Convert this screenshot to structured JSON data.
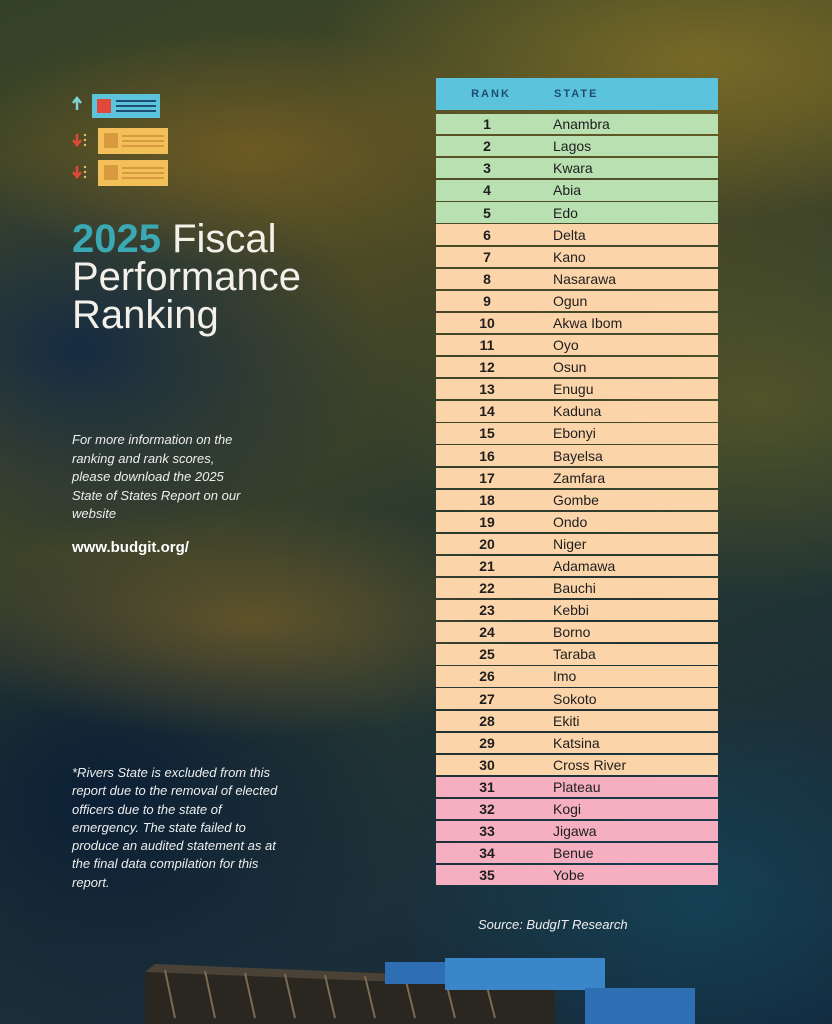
{
  "title": {
    "year": "2025",
    "rest": " Fiscal",
    "line2": "Performance",
    "line3": "Ranking"
  },
  "info": "For more information on the ranking and rank scores, please download the 2025 State of States Report on our website",
  "website": "www.budgit.org/",
  "note": "*Rivers State is excluded from this report due to the removal of elected  officers due to the state of emergency. The state failed to produce an audited statement as at the final data compilation for this report.",
  "source": "Source: BudgIT Research",
  "colors": {
    "header": "#5bc3dc",
    "top": "#b8e0b1",
    "middle": "#fcd4a9",
    "bottom": "#f5afc0",
    "year": "#3aa9b4"
  },
  "table": {
    "headers": {
      "rank": "RANK",
      "state": "STATE"
    },
    "rows": [
      {
        "rank": "1",
        "state": "Anambra",
        "tier": "g"
      },
      {
        "rank": "2",
        "state": "Lagos",
        "tier": "g"
      },
      {
        "rank": "3",
        "state": "Kwara",
        "tier": "g"
      },
      {
        "rank": "4",
        "state": "Abia",
        "tier": "g"
      },
      {
        "rank": "5",
        "state": "Edo",
        "tier": "g"
      },
      {
        "rank": "6",
        "state": "Delta",
        "tier": "p"
      },
      {
        "rank": "7",
        "state": "Kano",
        "tier": "p"
      },
      {
        "rank": "8",
        "state": "Nasarawa",
        "tier": "p"
      },
      {
        "rank": "9",
        "state": "Ogun",
        "tier": "p"
      },
      {
        "rank": "10",
        "state": "Akwa Ibom",
        "tier": "p"
      },
      {
        "rank": "11",
        "state": "Oyo",
        "tier": "p"
      },
      {
        "rank": "12",
        "state": "Osun",
        "tier": "p"
      },
      {
        "rank": "13",
        "state": "Enugu",
        "tier": "p"
      },
      {
        "rank": "14",
        "state": "Kaduna",
        "tier": "p"
      },
      {
        "rank": "15",
        "state": "Ebonyi",
        "tier": "p"
      },
      {
        "rank": "16",
        "state": "Bayelsa",
        "tier": "p"
      },
      {
        "rank": "17",
        "state": "Zamfara",
        "tier": "p"
      },
      {
        "rank": "18",
        "state": "Gombe",
        "tier": "p"
      },
      {
        "rank": "19",
        "state": "Ondo",
        "tier": "p"
      },
      {
        "rank": "20",
        "state": "Niger",
        "tier": "p"
      },
      {
        "rank": "21",
        "state": "Adamawa",
        "tier": "p"
      },
      {
        "rank": "22",
        "state": "Bauchi",
        "tier": "p"
      },
      {
        "rank": "23",
        "state": "Kebbi",
        "tier": "p"
      },
      {
        "rank": "24",
        "state": "Borno",
        "tier": "p"
      },
      {
        "rank": "25",
        "state": "Taraba",
        "tier": "p"
      },
      {
        "rank": "26",
        "state": "Imo",
        "tier": "p"
      },
      {
        "rank": "27",
        "state": "Sokoto",
        "tier": "p"
      },
      {
        "rank": "28",
        "state": "Ekiti",
        "tier": "p"
      },
      {
        "rank": "29",
        "state": "Katsina",
        "tier": "p"
      },
      {
        "rank": "30",
        "state": "Cross River",
        "tier": "p"
      },
      {
        "rank": "31",
        "state": "Plateau",
        "tier": "k"
      },
      {
        "rank": "32",
        "state": "Kogi",
        "tier": "k"
      },
      {
        "rank": "33",
        "state": "Jigawa",
        "tier": "k"
      },
      {
        "rank": "34",
        "state": "Benue",
        "tier": "k"
      },
      {
        "rank": "35",
        "state": "Yobe",
        "tier": "k"
      }
    ]
  }
}
